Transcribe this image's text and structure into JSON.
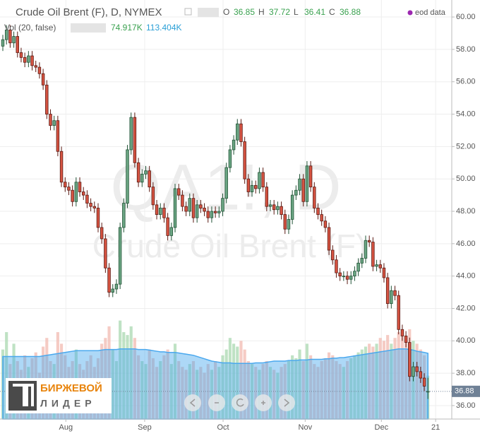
{
  "chart_data": {
    "type": "candlestick",
    "title": "Crude Oil Brent (F), D, NYMEX",
    "watermark": "QA1!, D",
    "watermark_subtitle": "Crude Oil Brent (F)",
    "source": "eod data",
    "ohlc_legend": [
      {
        "name": "O",
        "value": 36.85
      },
      {
        "name": "H",
        "value": 37.72
      },
      {
        "name": "L",
        "value": 36.41
      },
      {
        "name": "C",
        "value": 36.88
      }
    ],
    "last_price": 36.88,
    "up_color": "#6ba583",
    "down_color": "#d75442",
    "ohlc": [
      [
        58.2,
        58.9,
        57.9,
        58.6
      ],
      [
        58.6,
        59.5,
        58.3,
        59.2
      ],
      [
        59.2,
        59.5,
        58.1,
        58.4
      ],
      [
        58.4,
        59.1,
        58.1,
        58.8
      ],
      [
        58.8,
        59.1,
        57.5,
        57.8
      ],
      [
        57.8,
        58.1,
        57.2,
        57.5
      ],
      [
        57.5,
        57.8,
        56.9,
        57.2
      ],
      [
        57.2,
        57.9,
        56.9,
        57.6
      ],
      [
        57.6,
        57.9,
        56.7,
        57.0
      ],
      [
        57.0,
        57.3,
        56.6,
        56.9
      ],
      [
        56.9,
        57.2,
        56.2,
        56.5
      ],
      [
        56.5,
        56.8,
        55.5,
        55.8
      ],
      [
        55.8,
        56.1,
        53.7,
        54.0
      ],
      [
        54.0,
        54.3,
        53.0,
        53.3
      ],
      [
        53.3,
        53.9,
        53.0,
        53.6
      ],
      [
        53.6,
        53.9,
        51.4,
        51.7
      ],
      [
        51.7,
        52.0,
        49.5,
        49.8
      ],
      [
        49.8,
        50.1,
        49.2,
        49.5
      ],
      [
        49.5,
        49.8,
        49.0,
        49.3
      ],
      [
        49.3,
        49.6,
        48.3,
        48.6
      ],
      [
        48.6,
        50.1,
        48.3,
        49.8
      ],
      [
        49.8,
        50.1,
        48.9,
        49.2
      ],
      [
        49.2,
        49.5,
        48.7,
        49.0
      ],
      [
        49.0,
        49.3,
        48.2,
        48.5
      ],
      [
        48.5,
        48.8,
        48.0,
        48.3
      ],
      [
        48.3,
        48.6,
        47.9,
        48.2
      ],
      [
        48.2,
        48.5,
        46.7,
        47.0
      ],
      [
        47.0,
        47.3,
        46.0,
        46.3
      ],
      [
        46.3,
        46.6,
        44.2,
        44.5
      ],
      [
        44.5,
        44.8,
        42.7,
        43.0
      ],
      [
        43.0,
        43.5,
        42.7,
        43.2
      ],
      [
        43.2,
        43.8,
        42.9,
        43.5
      ],
      [
        43.5,
        47.3,
        43.2,
        47.0
      ],
      [
        47.0,
        48.8,
        46.7,
        48.5
      ],
      [
        48.5,
        52.1,
        48.2,
        51.8
      ],
      [
        51.8,
        54.1,
        51.5,
        53.8
      ],
      [
        53.8,
        54.1,
        50.7,
        51.0
      ],
      [
        51.0,
        51.3,
        49.5,
        49.8
      ],
      [
        49.8,
        50.6,
        49.5,
        50.3
      ],
      [
        50.3,
        50.8,
        50.0,
        50.5
      ],
      [
        50.5,
        50.8,
        49.2,
        49.5
      ],
      [
        49.5,
        49.8,
        48.1,
        48.4
      ],
      [
        48.4,
        48.7,
        47.5,
        47.8
      ],
      [
        47.8,
        48.5,
        47.5,
        48.2
      ],
      [
        48.2,
        48.5,
        47.3,
        47.6
      ],
      [
        47.6,
        47.9,
        46.2,
        46.5
      ],
      [
        46.5,
        47.3,
        46.2,
        47.0
      ],
      [
        47.0,
        49.7,
        46.7,
        49.4
      ],
      [
        49.4,
        49.7,
        48.7,
        49.0
      ],
      [
        49.0,
        49.3,
        48.0,
        48.3
      ],
      [
        48.3,
        48.6,
        47.7,
        48.0
      ],
      [
        48.0,
        49.1,
        47.7,
        48.8
      ],
      [
        48.8,
        49.1,
        47.3,
        47.6
      ],
      [
        47.6,
        48.7,
        47.3,
        48.4
      ],
      [
        48.4,
        48.7,
        47.9,
        48.2
      ],
      [
        48.2,
        48.5,
        47.7,
        48.0
      ],
      [
        48.0,
        48.3,
        47.3,
        47.6
      ],
      [
        47.6,
        48.3,
        47.3,
        48.0
      ],
      [
        48.0,
        48.3,
        47.6,
        47.9
      ],
      [
        47.9,
        48.3,
        47.6,
        48.0
      ],
      [
        48.0,
        49.1,
        47.7,
        48.8
      ],
      [
        48.8,
        51.0,
        48.5,
        50.7
      ],
      [
        50.7,
        52.1,
        50.4,
        51.8
      ],
      [
        51.8,
        52.7,
        51.5,
        52.4
      ],
      [
        52.4,
        53.7,
        52.1,
        53.4
      ],
      [
        53.4,
        53.7,
        52.0,
        52.3
      ],
      [
        52.3,
        52.6,
        49.7,
        50.0
      ],
      [
        50.0,
        50.3,
        48.9,
        49.2
      ],
      [
        49.2,
        49.9,
        48.9,
        49.6
      ],
      [
        49.6,
        49.9,
        49.1,
        49.4
      ],
      [
        49.4,
        50.7,
        49.1,
        50.4
      ],
      [
        50.4,
        50.7,
        49.2,
        49.5
      ],
      [
        49.5,
        49.8,
        48.0,
        48.3
      ],
      [
        48.3,
        48.7,
        48.0,
        48.4
      ],
      [
        48.4,
        48.7,
        47.8,
        48.1
      ],
      [
        48.1,
        48.6,
        47.8,
        48.3
      ],
      [
        48.3,
        48.6,
        47.5,
        47.8
      ],
      [
        47.8,
        48.1,
        46.6,
        46.9
      ],
      [
        46.9,
        47.8,
        46.6,
        47.5
      ],
      [
        47.5,
        49.3,
        47.2,
        49.0
      ],
      [
        49.0,
        49.6,
        48.7,
        49.3
      ],
      [
        49.3,
        50.3,
        49.0,
        50.0
      ],
      [
        50.0,
        50.3,
        48.3,
        48.6
      ],
      [
        48.6,
        51.1,
        48.3,
        50.8
      ],
      [
        50.8,
        51.1,
        49.2,
        49.5
      ],
      [
        49.5,
        49.8,
        47.9,
        48.2
      ],
      [
        48.2,
        48.5,
        47.5,
        47.8
      ],
      [
        47.8,
        48.1,
        47.1,
        47.4
      ],
      [
        47.4,
        47.7,
        46.7,
        47.0
      ],
      [
        47.0,
        47.3,
        45.3,
        45.6
      ],
      [
        45.6,
        45.9,
        44.7,
        45.0
      ],
      [
        45.0,
        45.3,
        43.9,
        44.2
      ],
      [
        44.2,
        44.5,
        43.7,
        44.0
      ],
      [
        44.0,
        44.3,
        43.7,
        44.0
      ],
      [
        44.0,
        44.3,
        43.5,
        43.8
      ],
      [
        43.8,
        44.3,
        43.5,
        44.0
      ],
      [
        44.0,
        44.6,
        43.7,
        44.3
      ],
      [
        44.3,
        45.1,
        44.0,
        44.8
      ],
      [
        44.8,
        45.4,
        44.5,
        45.1
      ],
      [
        45.1,
        46.5,
        44.8,
        46.2
      ],
      [
        46.2,
        46.5,
        45.8,
        46.1
      ],
      [
        46.1,
        46.4,
        44.3,
        44.6
      ],
      [
        44.6,
        45.0,
        44.3,
        44.7
      ],
      [
        44.7,
        45.0,
        44.2,
        44.5
      ],
      [
        44.5,
        44.8,
        43.6,
        43.9
      ],
      [
        43.9,
        44.2,
        42.0,
        42.3
      ],
      [
        42.3,
        43.4,
        42.0,
        43.1
      ],
      [
        43.1,
        43.4,
        42.5,
        42.8
      ],
      [
        42.8,
        43.1,
        40.4,
        40.7
      ],
      [
        40.7,
        41.0,
        40.0,
        40.3
      ],
      [
        40.3,
        40.6,
        39.6,
        39.9
      ],
      [
        39.9,
        40.2,
        37.5,
        37.8
      ],
      [
        37.8,
        38.7,
        37.5,
        38.4
      ],
      [
        38.4,
        38.7,
        37.8,
        38.1
      ],
      [
        38.1,
        38.4,
        37.4,
        37.7
      ],
      [
        37.7,
        38.0,
        36.9,
        37.2
      ],
      [
        36.85,
        37.72,
        36.41,
        36.88
      ]
    ],
    "volume": {
      "name": "Vol (20, false)",
      "value_label": "74.917K",
      "values": [
        120,
        150,
        95,
        130,
        100,
        85,
        110,
        90,
        105,
        115,
        80,
        125,
        140,
        100,
        95,
        150,
        130,
        110,
        90,
        100,
        120,
        95,
        85,
        100,
        110,
        90,
        105,
        130,
        140,
        160,
        120,
        100,
        170,
        150,
        145,
        160,
        140,
        110,
        100,
        95,
        120,
        105,
        90,
        100,
        110,
        120,
        95,
        130,
        100,
        90,
        85,
        95,
        100,
        85,
        90,
        80,
        95,
        85,
        100,
        90,
        110,
        120,
        140,
        130,
        125,
        135,
        120,
        100,
        95,
        90,
        85,
        95,
        100,
        90,
        85,
        80,
        90,
        95,
        100,
        110,
        105,
        120,
        100,
        130,
        110,
        95,
        90,
        100,
        105,
        115,
        110,
        100,
        95,
        90,
        100,
        105,
        110,
        115,
        120,
        125,
        130,
        125,
        130,
        140,
        135,
        145,
        130,
        140,
        150,
        145,
        140,
        155,
        135,
        130,
        120,
        110,
        74.917
      ]
    },
    "volume_ma": {
      "value_label": "113.404K",
      "color": "#4aa8ee",
      "values": [
        108,
        108,
        108,
        108,
        108,
        108,
        108,
        108,
        108,
        108,
        108,
        109,
        110,
        111,
        112,
        113,
        114,
        115,
        116,
        117,
        118,
        118,
        118,
        118,
        118,
        118,
        118,
        119,
        120,
        120,
        120,
        120,
        121,
        121,
        121,
        121,
        121,
        120,
        120,
        120,
        119,
        118,
        117,
        116,
        116,
        115,
        115,
        115,
        114,
        113,
        112,
        111,
        110,
        108,
        106,
        104,
        102,
        100,
        99,
        98,
        97,
        97,
        97,
        96,
        96,
        96,
        96,
        96,
        96,
        97,
        97,
        97,
        98,
        99,
        100,
        100,
        100,
        100,
        101,
        101,
        101,
        102,
        102,
        102,
        103,
        103,
        103,
        103,
        104,
        104,
        105,
        105,
        106,
        106,
        107,
        108,
        109,
        110,
        111,
        112,
        113,
        114,
        115,
        116,
        117,
        118,
        119,
        120,
        121,
        121,
        121,
        120,
        119,
        117,
        116,
        115,
        113.404
      ]
    },
    "xlim": [
      -0.77,
      122.5
    ],
    "xticks": [
      {
        "value": 17.2,
        "label": "Aug"
      },
      {
        "value": 38.7,
        "label": "Sep"
      },
      {
        "value": 60.1,
        "label": "Oct"
      },
      {
        "value": 82.5,
        "label": "Nov"
      },
      {
        "value": 103.3,
        "label": "Dec"
      },
      {
        "value": 118.1,
        "label": "21"
      }
    ],
    "ylim": [
      35.17,
      61.05
    ],
    "yticks": [
      {
        "value": 36,
        "label": "36.00"
      },
      {
        "value": 38,
        "label": "38.00"
      },
      {
        "value": 40,
        "label": "40.00"
      },
      {
        "value": 42,
        "label": "42.00"
      },
      {
        "value": 44,
        "label": "44.00"
      },
      {
        "value": 46,
        "label": "46.00"
      },
      {
        "value": 48,
        "label": "48.00"
      },
      {
        "value": 50,
        "label": "50.00"
      },
      {
        "value": 52,
        "label": "52.00"
      },
      {
        "value": 54,
        "label": "54.00"
      },
      {
        "value": 56,
        "label": "56.00"
      },
      {
        "value": 58,
        "label": "58.00"
      },
      {
        "value": 60,
        "label": "60.00"
      }
    ],
    "grid": true
  },
  "logo": {
    "line1": "БИРЖЕВОЙ",
    "line2": "ЛИДЕР"
  }
}
